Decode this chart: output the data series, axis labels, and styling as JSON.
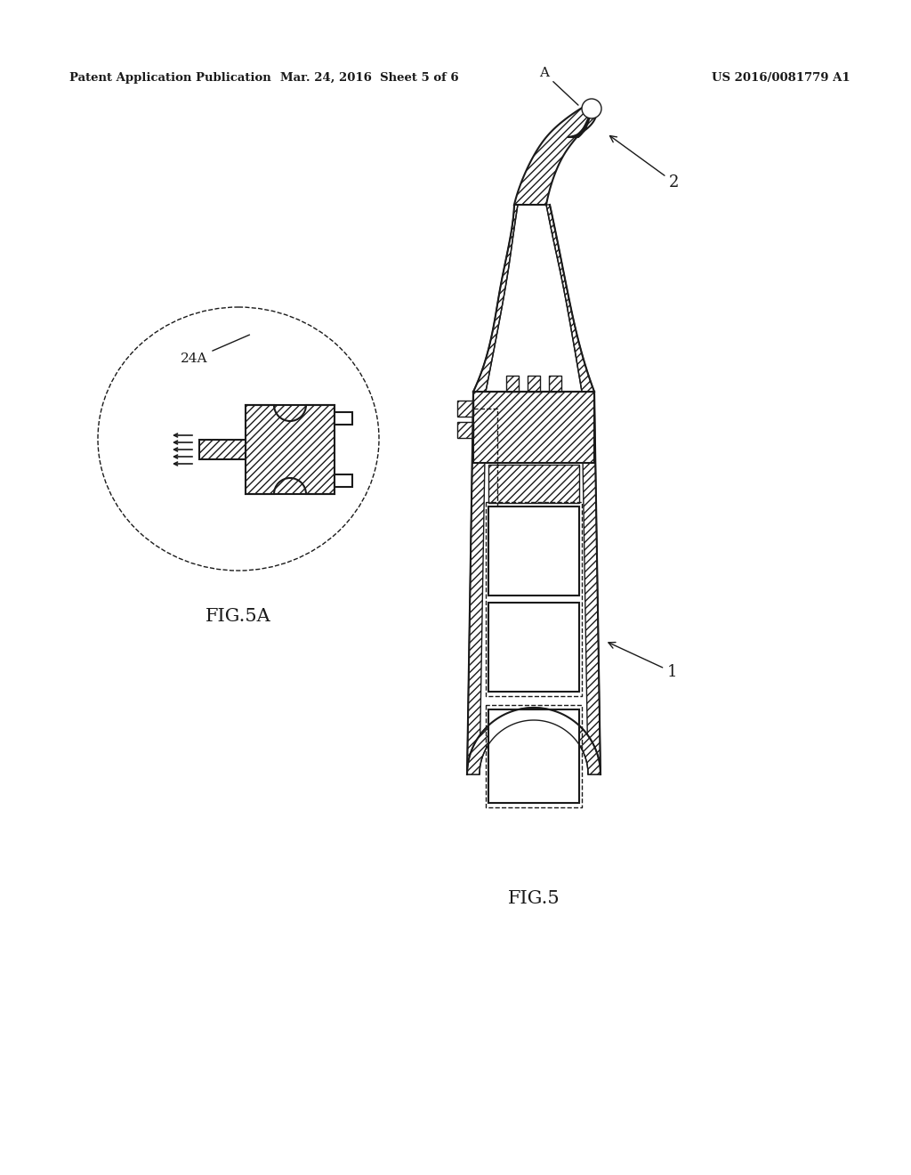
{
  "title_left": "Patent Application Publication",
  "title_mid": "Mar. 24, 2016  Sheet 5 of 6",
  "title_right": "US 2016/0081779 A1",
  "fig5a_label": "FIG.5A",
  "fig5_label": "FIG.5",
  "label_24A": "24A",
  "label_A": "A",
  "label_1": "1",
  "label_2": "2",
  "bg_color": "#ffffff",
  "line_color": "#1a1a1a",
  "fig_width": 10.24,
  "fig_height": 13.2,
  "dpi": 100
}
